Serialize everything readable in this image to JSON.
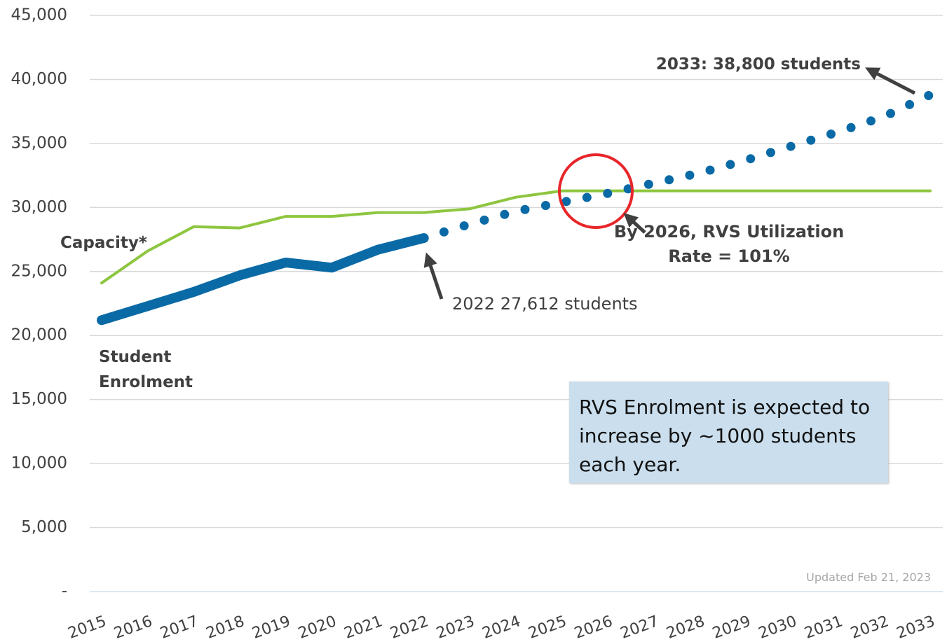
{
  "chart_data": {
    "type": "line",
    "categories": [
      "2015",
      "2016",
      "2017",
      "2018",
      "2019",
      "2020",
      "2021",
      "2022",
      "2023",
      "2024",
      "2025",
      "2026",
      "2027",
      "2028",
      "2029",
      "2030",
      "2031",
      "2032",
      "2033"
    ],
    "series": [
      {
        "name": "Capacity*",
        "color": "#8dc63f",
        "style": "solid",
        "values": [
          24100,
          26600,
          28500,
          28400,
          29300,
          29300,
          29600,
          29600,
          29900,
          30800,
          31300,
          31300,
          31300,
          31300,
          31300,
          31300,
          31300,
          31300,
          31300
        ]
      },
      {
        "name": "Student Enrolment",
        "color": "#0a6aa6",
        "style": "thick",
        "values": [
          21200,
          22300,
          23400,
          24700,
          25700,
          25300,
          26700,
          27612,
          null,
          null,
          null,
          null,
          null,
          null,
          null,
          null,
          null,
          null,
          null
        ]
      },
      {
        "color": "#0a6aa6",
        "style": "dotted",
        "values": [
          null,
          null,
          null,
          null,
          null,
          null,
          null,
          27612,
          28700,
          29700,
          30400,
          31100,
          31900,
          32700,
          33700,
          34800,
          35900,
          37100,
          38800
        ]
      }
    ],
    "ylim": [
      0,
      45000
    ],
    "yticks": [
      {
        "value": 0,
        "label": "-"
      },
      {
        "value": 5000,
        "label": "5,000"
      },
      {
        "value": 10000,
        "label": "10,000"
      },
      {
        "value": 15000,
        "label": "15,000"
      },
      {
        "value": 20000,
        "label": "20,000"
      },
      {
        "value": 25000,
        "label": "25,000"
      },
      {
        "value": 30000,
        "label": "30,000"
      },
      {
        "value": 35000,
        "label": "35,000"
      },
      {
        "value": 40000,
        "label": "40,000"
      },
      {
        "value": 45000,
        "label": "45,000"
      }
    ],
    "grid": true,
    "annotations": {
      "latest": "2022 27,612 students",
      "target": "2033: 38,800 students",
      "utilization": "By 2026, RVS Utilization Rate = 101%",
      "note": "RVS Enrolment is expected to increase by ~1000 students each year.",
      "updated": "Updated Feb 21, 2023"
    }
  }
}
